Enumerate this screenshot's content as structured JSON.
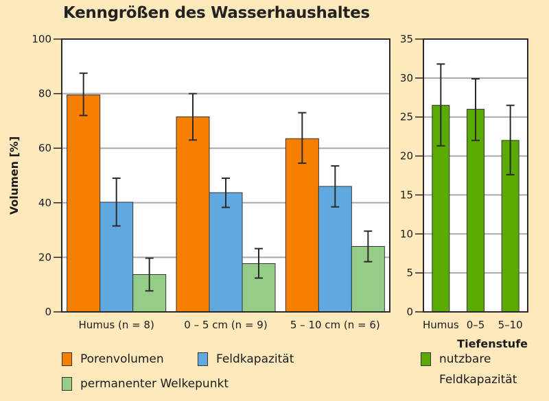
{
  "chart_data": [
    {
      "type": "bar",
      "title": "Kenngrößen des Wasserhaushaltes",
      "ylabel": "Volumen [%]",
      "xlabel": "",
      "ylim": [
        0,
        100
      ],
      "yticks": [
        0,
        20,
        40,
        60,
        80,
        100
      ],
      "grid": true,
      "categories": [
        "Humus (n = 8)",
        "0 – 5 cm (n = 9)",
        "5 – 10 cm (n = 6)"
      ],
      "series": [
        {
          "name": "Porenvolumen",
          "color": "#f77f00",
          "values": [
            79.5,
            71.5,
            63.5
          ],
          "err_low": [
            72,
            63,
            54.5
          ],
          "err_high": [
            87.5,
            80,
            73
          ]
        },
        {
          "name": "Feldkapazität",
          "color": "#5fa8e0",
          "values": [
            40.2,
            43.7,
            46
          ],
          "err_low": [
            31.5,
            38.3,
            38.5
          ],
          "err_high": [
            49,
            49,
            53.5
          ]
        },
        {
          "name": "permanenter Welkepunkt",
          "color": "#95cc88",
          "values": [
            13.7,
            17.7,
            24
          ],
          "err_low": [
            7.7,
            12.4,
            18.4
          ],
          "err_high": [
            19.7,
            23.2,
            29.6
          ]
        }
      ],
      "legend_position": "bottom-left"
    },
    {
      "type": "bar",
      "title": "",
      "ylabel": "",
      "xlabel": "Tiefenstufe",
      "ylim": [
        0,
        35
      ],
      "yticks": [
        0,
        5,
        10,
        15,
        20,
        25,
        30,
        35
      ],
      "grid": true,
      "categories": [
        "Humus",
        "0–5",
        "5–10"
      ],
      "series": [
        {
          "name": "nutzbare Feldkapazität",
          "color": "#5aaa00",
          "values": [
            26.5,
            26,
            22
          ],
          "err_low": [
            21.3,
            22,
            17.6
          ],
          "err_high": [
            31.8,
            29.9,
            26.5
          ]
        }
      ],
      "legend_position": "bottom-right"
    }
  ],
  "legend": {
    "left": [
      {
        "label": "Porenvolumen",
        "color": "#f77f00"
      },
      {
        "label": "Feldkapazität",
        "color": "#5fa8e0"
      },
      {
        "label": "permanenter Welkepunkt",
        "color": "#95cc88"
      }
    ],
    "right": {
      "label_line1": "nutzbare",
      "label_line2": "Feldkapazität",
      "color": "#5aaa00"
    }
  }
}
